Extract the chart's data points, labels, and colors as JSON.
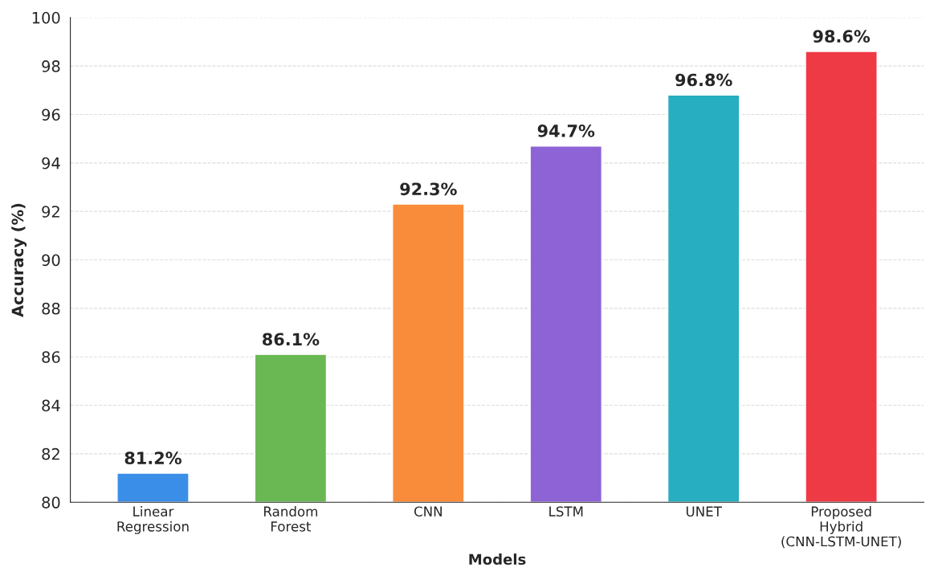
{
  "chart_data": {
    "type": "bar",
    "xlabel": "Models",
    "ylabel": "Accuracy (%)",
    "categories": [
      "Linear\nRegression",
      "Random\nForest",
      "CNN",
      "LSTM",
      "UNET",
      "Proposed\nHybrid\n(CNN-LSTM-UNET)"
    ],
    "values": [
      81.2,
      86.1,
      92.3,
      94.7,
      96.8,
      98.6
    ],
    "colors": [
      "#3b8ee8",
      "#6ab853",
      "#f98c3a",
      "#8e63d6",
      "#27aec0",
      "#ee3a45"
    ],
    "value_labels": [
      "81.2%",
      "86.1%",
      "92.3%",
      "94.7%",
      "96.8%",
      "98.6%"
    ],
    "ylim": [
      80,
      100
    ],
    "yticks": [
      80,
      82,
      84,
      86,
      88,
      90,
      92,
      94,
      96,
      98,
      100
    ],
    "grid": "y"
  }
}
